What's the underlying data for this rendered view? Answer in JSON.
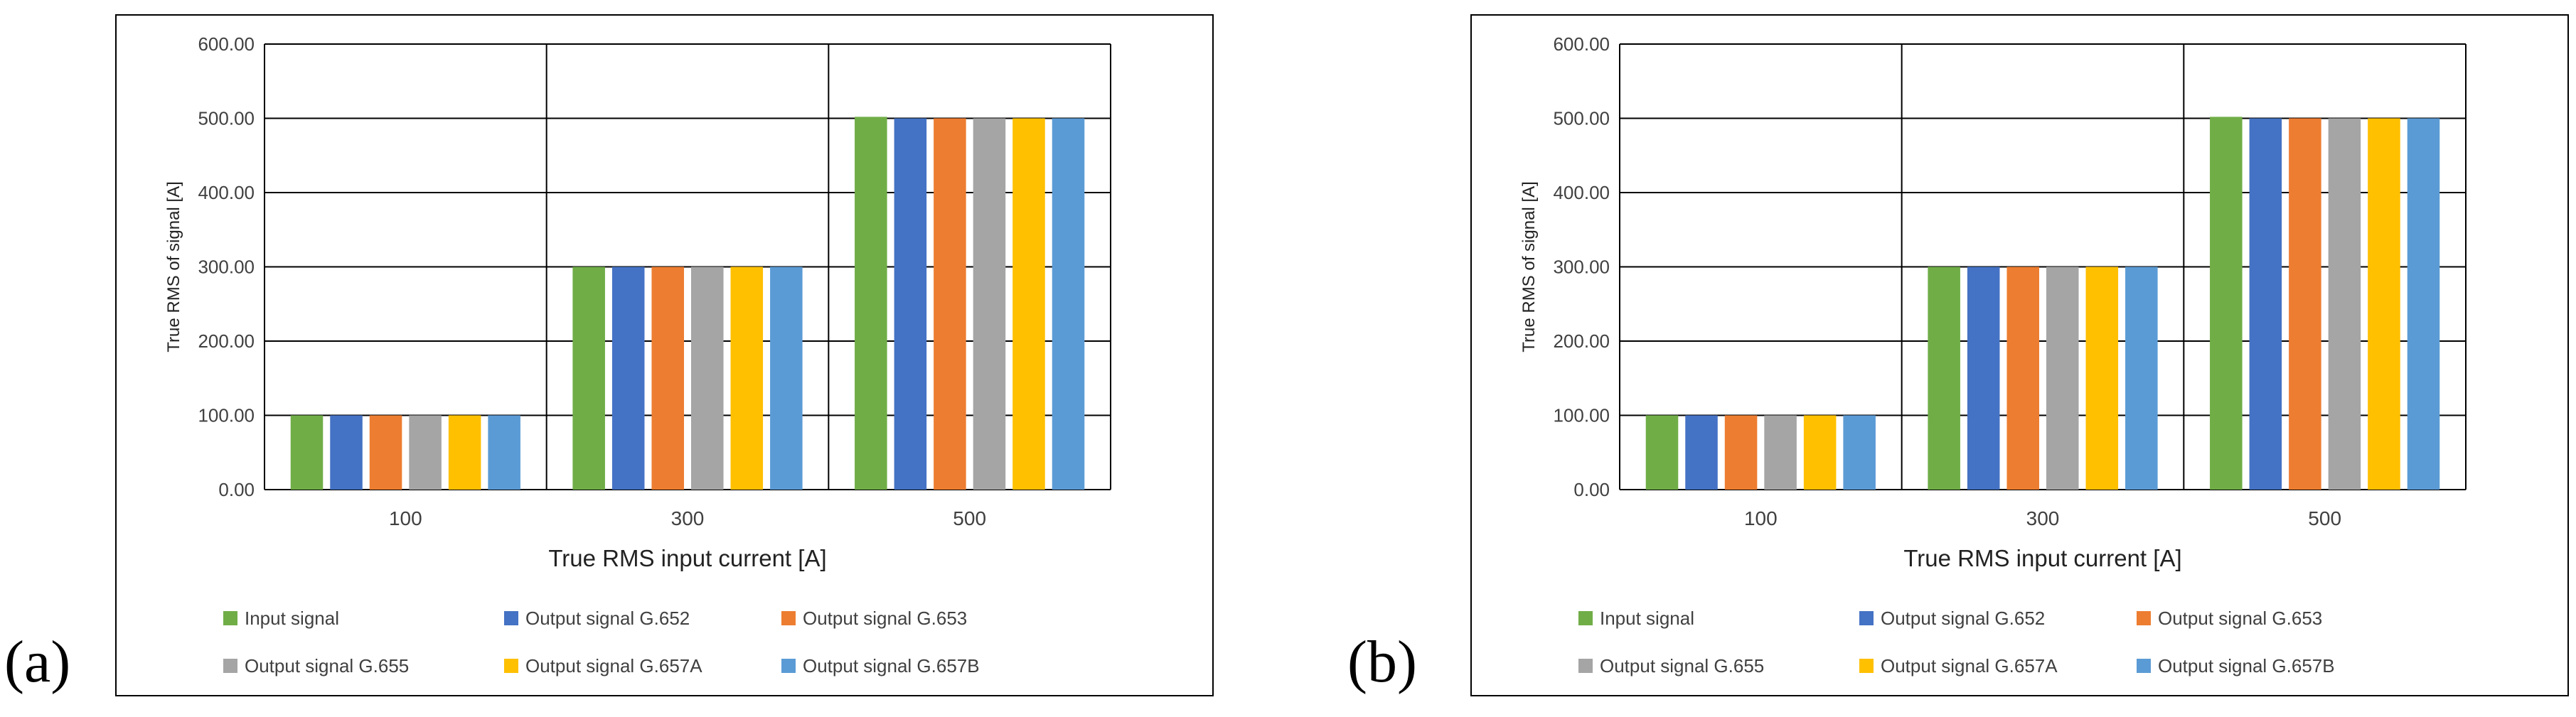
{
  "panels": [
    {
      "label": "(a)"
    },
    {
      "label": "(b)"
    }
  ],
  "chart_data": [
    {
      "type": "bar",
      "categories": [
        "100",
        "300",
        "500"
      ],
      "series": [
        {
          "name": "Input signal",
          "color": "#70ad47",
          "values": [
            100.0,
            300.0,
            502.0
          ]
        },
        {
          "name": "Output signal G.652",
          "color": "#4472c4",
          "values": [
            100.0,
            300.0,
            500.0
          ]
        },
        {
          "name": "Output signal G.653",
          "color": "#ed7d31",
          "values": [
            100.0,
            300.0,
            500.0
          ]
        },
        {
          "name": "Output signal G.655",
          "color": "#a5a5a5",
          "values": [
            100.0,
            300.0,
            500.0
          ]
        },
        {
          "name": "Output signal G.657A",
          "color": "#ffc000",
          "values": [
            100.0,
            300.0,
            500.0
          ]
        },
        {
          "name": "Output signal G.657B",
          "color": "#5b9bd5",
          "values": [
            100.0,
            300.0,
            500.0
          ]
        }
      ],
      "xlabel": "True RMS input current [A]",
      "ylabel": "True RMS of signal [A]",
      "ylim": [
        0,
        600
      ],
      "yticks": [
        "0.00",
        "100.00",
        "200.00",
        "300.00",
        "400.00",
        "500.00",
        "600.00"
      ],
      "grid": true,
      "legend_position": "bottom"
    },
    {
      "type": "bar",
      "categories": [
        "100",
        "300",
        "500"
      ],
      "series": [
        {
          "name": "Input signal",
          "color": "#70ad47",
          "values": [
            100.0,
            300.0,
            502.0
          ]
        },
        {
          "name": "Output signal G.652",
          "color": "#4472c4",
          "values": [
            100.0,
            300.0,
            500.0
          ]
        },
        {
          "name": "Output signal G.653",
          "color": "#ed7d31",
          "values": [
            100.0,
            300.0,
            500.0
          ]
        },
        {
          "name": "Output signal G.655",
          "color": "#a5a5a5",
          "values": [
            100.0,
            300.0,
            500.0
          ]
        },
        {
          "name": "Output signal G.657A",
          "color": "#ffc000",
          "values": [
            100.0,
            300.0,
            500.0
          ]
        },
        {
          "name": "Output signal G.657B",
          "color": "#5b9bd5",
          "values": [
            100.0,
            300.0,
            500.0
          ]
        }
      ],
      "xlabel": "True RMS input current [A]",
      "ylabel": "True RMS of signal [A]",
      "ylim": [
        0,
        600
      ],
      "yticks": [
        "0.00",
        "100.00",
        "200.00",
        "300.00",
        "400.00",
        "500.00",
        "600.00"
      ],
      "grid": true,
      "legend_position": "bottom"
    }
  ]
}
